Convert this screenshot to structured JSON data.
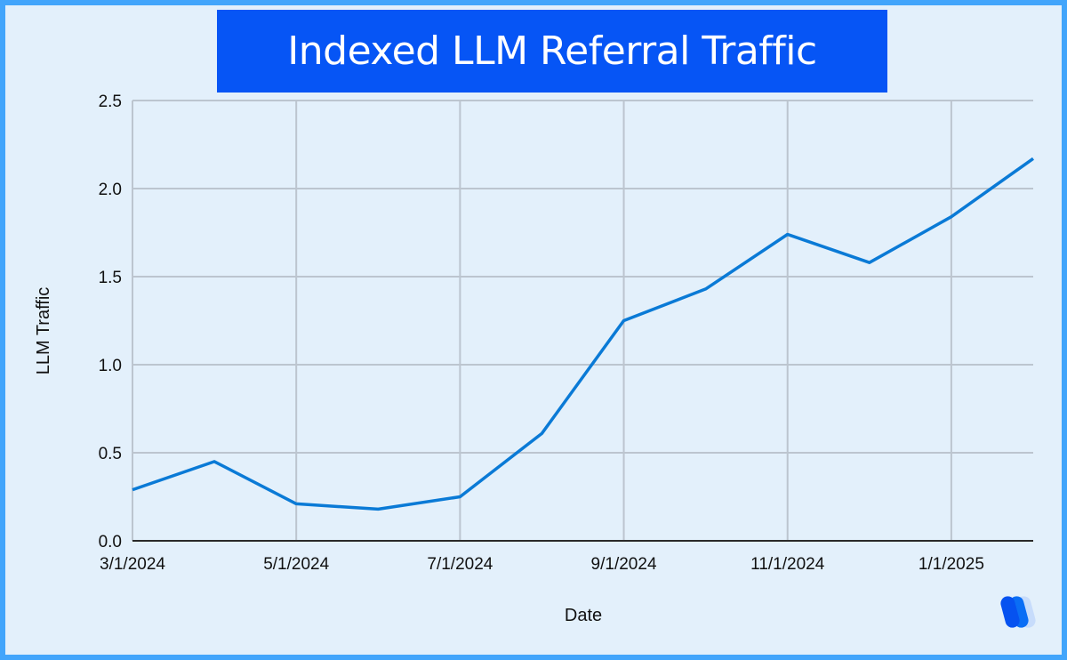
{
  "title": "Indexed LLM Referral Traffic",
  "colors": {
    "border": "#42a5fb",
    "background": "#e3f0fb",
    "title_bg": "#0655f5",
    "line": "#0a7ad6",
    "grid": "#bcc5cf",
    "axis": "#2a2a2a"
  },
  "logo": {
    "name": "w-stripes-logo"
  },
  "chart_data": {
    "type": "line",
    "title": "Indexed LLM Referral Traffic",
    "xlabel": "Date",
    "ylabel": "LLM Traffic",
    "ylim": [
      0,
      2.5
    ],
    "yticks": [
      "0.0",
      "0.5",
      "1.0",
      "1.5",
      "2.0",
      "2.5"
    ],
    "xticks": [
      "3/1/2024",
      "5/1/2024",
      "7/1/2024",
      "9/1/2024",
      "11/1/2024",
      "1/1/2025"
    ],
    "grid": true,
    "legend": "none",
    "x": [
      "3/1/2024",
      "4/1/2024",
      "5/1/2024",
      "6/1/2024",
      "7/1/2024",
      "8/1/2024",
      "9/1/2024",
      "10/1/2024",
      "11/1/2024",
      "12/1/2024",
      "1/1/2025",
      "2/1/2025"
    ],
    "series": [
      {
        "name": "LLM Traffic",
        "values": [
          0.29,
          0.45,
          0.21,
          0.18,
          0.25,
          0.61,
          1.25,
          1.43,
          1.74,
          1.58,
          1.84,
          2.17
        ]
      }
    ]
  }
}
